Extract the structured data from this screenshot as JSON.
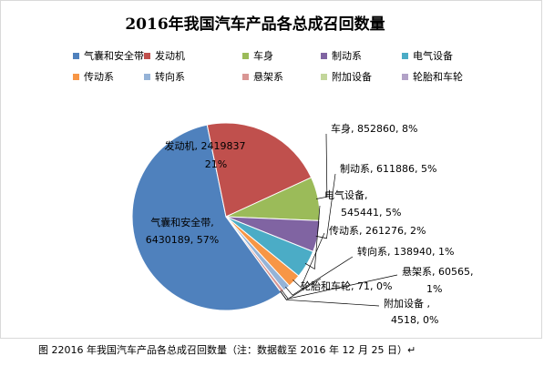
{
  "chart_data": {
    "type": "pie",
    "title": "2016年我国汽车产品各总成召回数量",
    "legend_position": "top",
    "slices": [
      {
        "name": "气囊和安全带",
        "value": 6430189,
        "percent": "57%",
        "label_value": "6430189",
        "color": "#4f81bd"
      },
      {
        "name": "发动机",
        "value": 2419837,
        "percent": "21%",
        "label_value": "2419837",
        "color": "#c0504d"
      },
      {
        "name": "车身",
        "value": 852860,
        "percent": "8%",
        "label_value": "852860",
        "color": "#9bbb59"
      },
      {
        "name": "制动系",
        "value": 611886,
        "percent": "5%",
        "label_value": "611886",
        "color": "#8064a2"
      },
      {
        "name": "电气设备",
        "value": 545441,
        "percent": "5%",
        "label_value": "545441",
        "color": "#4bacc6"
      },
      {
        "name": "传动系",
        "value": 261276,
        "percent": "2%",
        "label_value": "261276",
        "color": "#f79646"
      },
      {
        "name": "转向系",
        "value": 138940,
        "percent": "1%",
        "label_value": "138940",
        "color": "#95b3d7"
      },
      {
        "name": "悬架系",
        "value": 60565,
        "percent": "1%",
        "label_value": "60565",
        "color": "#d99694"
      },
      {
        "name": "附加设备",
        "value": 4518,
        "percent": "0%",
        "label_value": "4518",
        "color": "#c3d69b"
      },
      {
        "name": "轮胎和车轮",
        "value": 71,
        "percent": "0%",
        "label_value": "71",
        "color": "#b2a2c7"
      }
    ]
  },
  "caption": "图 22016 年我国汽车产品各总成召回数量（注：数据截至 2016 年 12 月 25 日）↵"
}
